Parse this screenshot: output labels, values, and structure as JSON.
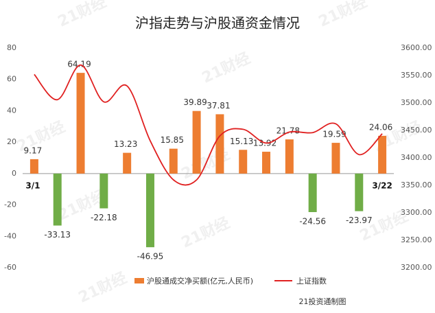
{
  "chart_data": {
    "type": "combo",
    "title": "沪指走势与沪股通资金情况",
    "watermark": "21财经",
    "categories": [
      "3/1",
      null,
      null,
      null,
      null,
      null,
      null,
      null,
      null,
      null,
      null,
      null,
      null,
      null,
      null,
      "3/22"
    ],
    "series": [
      {
        "name": "沪股通成交净买额(亿元,人民币)",
        "type": "bar",
        "color": "#ed7d31",
        "negative_color": "#70ad47",
        "values": [
          9.17,
          -33.13,
          64.19,
          -22.18,
          13.23,
          -46.95,
          15.85,
          39.89,
          37.81,
          15.13,
          13.92,
          21.78,
          -24.56,
          19.59,
          -23.97,
          24.06
        ]
      },
      {
        "name": "上证指数",
        "type": "line",
        "axis": "y2",
        "color": "#e02020",
        "values": [
          3552,
          3506,
          3569,
          3502,
          3531,
          3431,
          3360,
          3360,
          3440,
          3452,
          3427,
          3447,
          3446,
          3462,
          3406,
          3444
        ]
      }
    ],
    "ylim": [
      -60,
      80
    ],
    "yticks": [
      -60,
      -40,
      -20,
      0,
      20,
      40,
      60,
      80
    ],
    "y2lim": [
      3200,
      3600
    ],
    "y2ticks": [
      {
        "value": 3200,
        "label": "3200.00"
      },
      {
        "value": 3250,
        "label": "3250.00"
      },
      {
        "value": 3300,
        "label": "3300.00"
      },
      {
        "value": 3350,
        "label": "3350.00"
      },
      {
        "value": 3400,
        "label": "3400.00"
      },
      {
        "value": 3450,
        "label": "3450.00"
      },
      {
        "value": 3500,
        "label": "3500.00"
      },
      {
        "value": 3550,
        "label": "3550.00"
      },
      {
        "value": 3600,
        "label": "3600.00"
      }
    ],
    "legend": "bottom",
    "source": "21投资通制图"
  }
}
